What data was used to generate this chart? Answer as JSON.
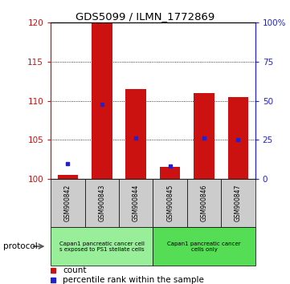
{
  "title": "GDS5099 / ILMN_1772869",
  "samples": [
    "GSM900842",
    "GSM900843",
    "GSM900844",
    "GSM900845",
    "GSM900846",
    "GSM900847"
  ],
  "count_values": [
    100.5,
    120.0,
    111.5,
    101.5,
    111.0,
    110.5
  ],
  "percentile_values": [
    10.0,
    48.0,
    26.0,
    8.0,
    26.0,
    25.0
  ],
  "ylim_left": [
    100,
    120
  ],
  "ylim_right": [
    0,
    100
  ],
  "yticks_left": [
    100,
    105,
    110,
    115,
    120
  ],
  "yticks_right": [
    0,
    25,
    50,
    75,
    100
  ],
  "ytick_labels_right": [
    "0",
    "25",
    "50",
    "75",
    "100%"
  ],
  "bar_color": "#cc1111",
  "percentile_color": "#2222cc",
  "protocol_groups": [
    {
      "label": "Capan1 pancreatic cancer cell\ns exposed to PS1 stellate cells",
      "start": 0,
      "end": 3,
      "color": "#99ee99"
    },
    {
      "label": "Capan1 pancreatic cancer\ncells only",
      "start": 3,
      "end": 6,
      "color": "#55dd55"
    }
  ],
  "protocol_label": "protocol",
  "legend_count_label": "count",
  "legend_percentile_label": "percentile rank within the sample",
  "bar_width": 0.6,
  "tick_area_color": "#cccccc",
  "left_tick_color": "#cc1111",
  "right_tick_color": "#2222cc"
}
